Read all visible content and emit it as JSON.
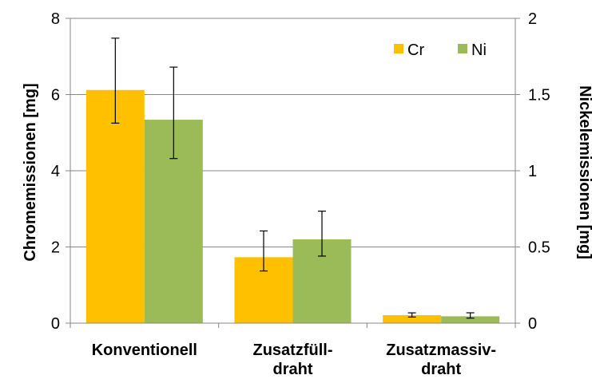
{
  "chart_data": {
    "type": "bar",
    "categories": [
      [
        "Konventionell"
      ],
      [
        "Zusatzfüll-",
        "draht"
      ],
      [
        "Zusatzmassiv-",
        "draht"
      ]
    ],
    "series": [
      {
        "name": "Cr",
        "axis": "left",
        "color": "#FFC000",
        "values": [
          6.12,
          1.73,
          0.21
        ],
        "error_low": [
          5.25,
          1.37,
          0.16
        ],
        "error_high": [
          7.48,
          2.42,
          0.27
        ]
      },
      {
        "name": "Ni",
        "axis": "right",
        "color": "#9BBB59",
        "values": [
          1.335,
          0.55,
          0.045
        ],
        "error_low": [
          1.08,
          0.44,
          0.033
        ],
        "error_high": [
          1.68,
          0.735,
          0.068
        ]
      }
    ],
    "y_left": {
      "label": "Chromemissionen [mg]",
      "ylim": [
        0,
        8
      ],
      "ticks": [
        0,
        2,
        4,
        6,
        8
      ],
      "tick_labels": [
        "0",
        "2",
        "4",
        "6",
        "8"
      ]
    },
    "y_right": {
      "label": "Nickelemissionen [mg]",
      "ylim": [
        0,
        2
      ],
      "ticks": [
        0,
        0.5,
        1,
        1.5,
        2
      ],
      "tick_labels": [
        "0",
        "0.5",
        "1",
        "1.5",
        "2"
      ]
    },
    "grid": true,
    "legend_position": "top-right",
    "colors": {
      "grid": "#878787",
      "error_bar": "#000000"
    }
  }
}
